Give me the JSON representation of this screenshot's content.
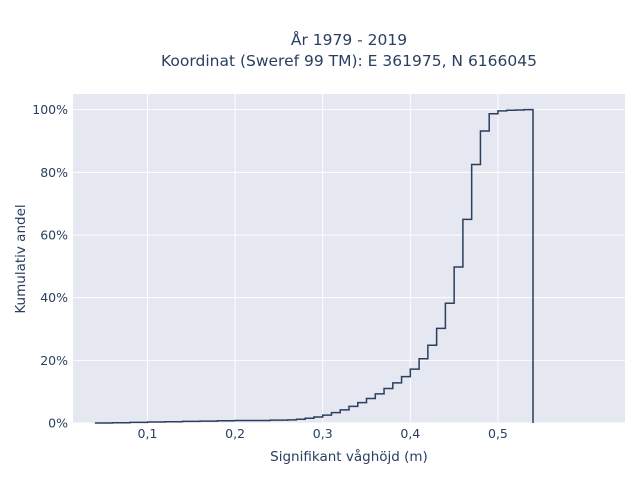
{
  "chart_data": {
    "type": "line",
    "subtype": "cumulative-step",
    "title_line1": "År 1979 - 2019",
    "title_line2": "Koordinat (Sweref 99 TM): E 361975, N 6166045",
    "xlabel": "Signifikant våghöjd (m)",
    "ylabel": "Kumulativ andel",
    "xlim": [
      0.015,
      0.645
    ],
    "ylim": [
      0,
      1.05
    ],
    "x_ticks": [
      0.1,
      0.2,
      0.3,
      0.4,
      0.5
    ],
    "x_tick_labels": [
      "0,1",
      "0,2",
      "0,3",
      "0,4",
      "0,5"
    ],
    "y_ticks": [
      0,
      0.2,
      0.4,
      0.6,
      0.8,
      1.0
    ],
    "y_tick_labels": [
      "0%",
      "20%",
      "40%",
      "60%",
      "80%",
      "100%"
    ],
    "grid": true,
    "colors": {
      "plot_bg": "#e5e7f1",
      "grid": "#ffffff",
      "line": "#2a3f5f",
      "text": "#2a3f5f"
    },
    "x": [
      0.04,
      0.06,
      0.08,
      0.1,
      0.12,
      0.14,
      0.16,
      0.18,
      0.2,
      0.22,
      0.24,
      0.26,
      0.27,
      0.28,
      0.29,
      0.3,
      0.31,
      0.32,
      0.33,
      0.34,
      0.35,
      0.36,
      0.37,
      0.38,
      0.39,
      0.4,
      0.41,
      0.42,
      0.43,
      0.44,
      0.45,
      0.46,
      0.47,
      0.48,
      0.49,
      0.5,
      0.51,
      0.52,
      0.53,
      0.54
    ],
    "y": [
      0.0,
      0.001,
      0.002,
      0.003,
      0.004,
      0.005,
      0.006,
      0.007,
      0.008,
      0.008,
      0.009,
      0.01,
      0.012,
      0.015,
      0.019,
      0.025,
      0.033,
      0.042,
      0.053,
      0.065,
      0.078,
      0.093,
      0.11,
      0.128,
      0.148,
      0.172,
      0.205,
      0.248,
      0.302,
      0.382,
      0.498,
      0.65,
      0.825,
      0.932,
      0.987,
      0.996,
      0.998,
      0.999,
      1.0,
      0.0
    ]
  }
}
